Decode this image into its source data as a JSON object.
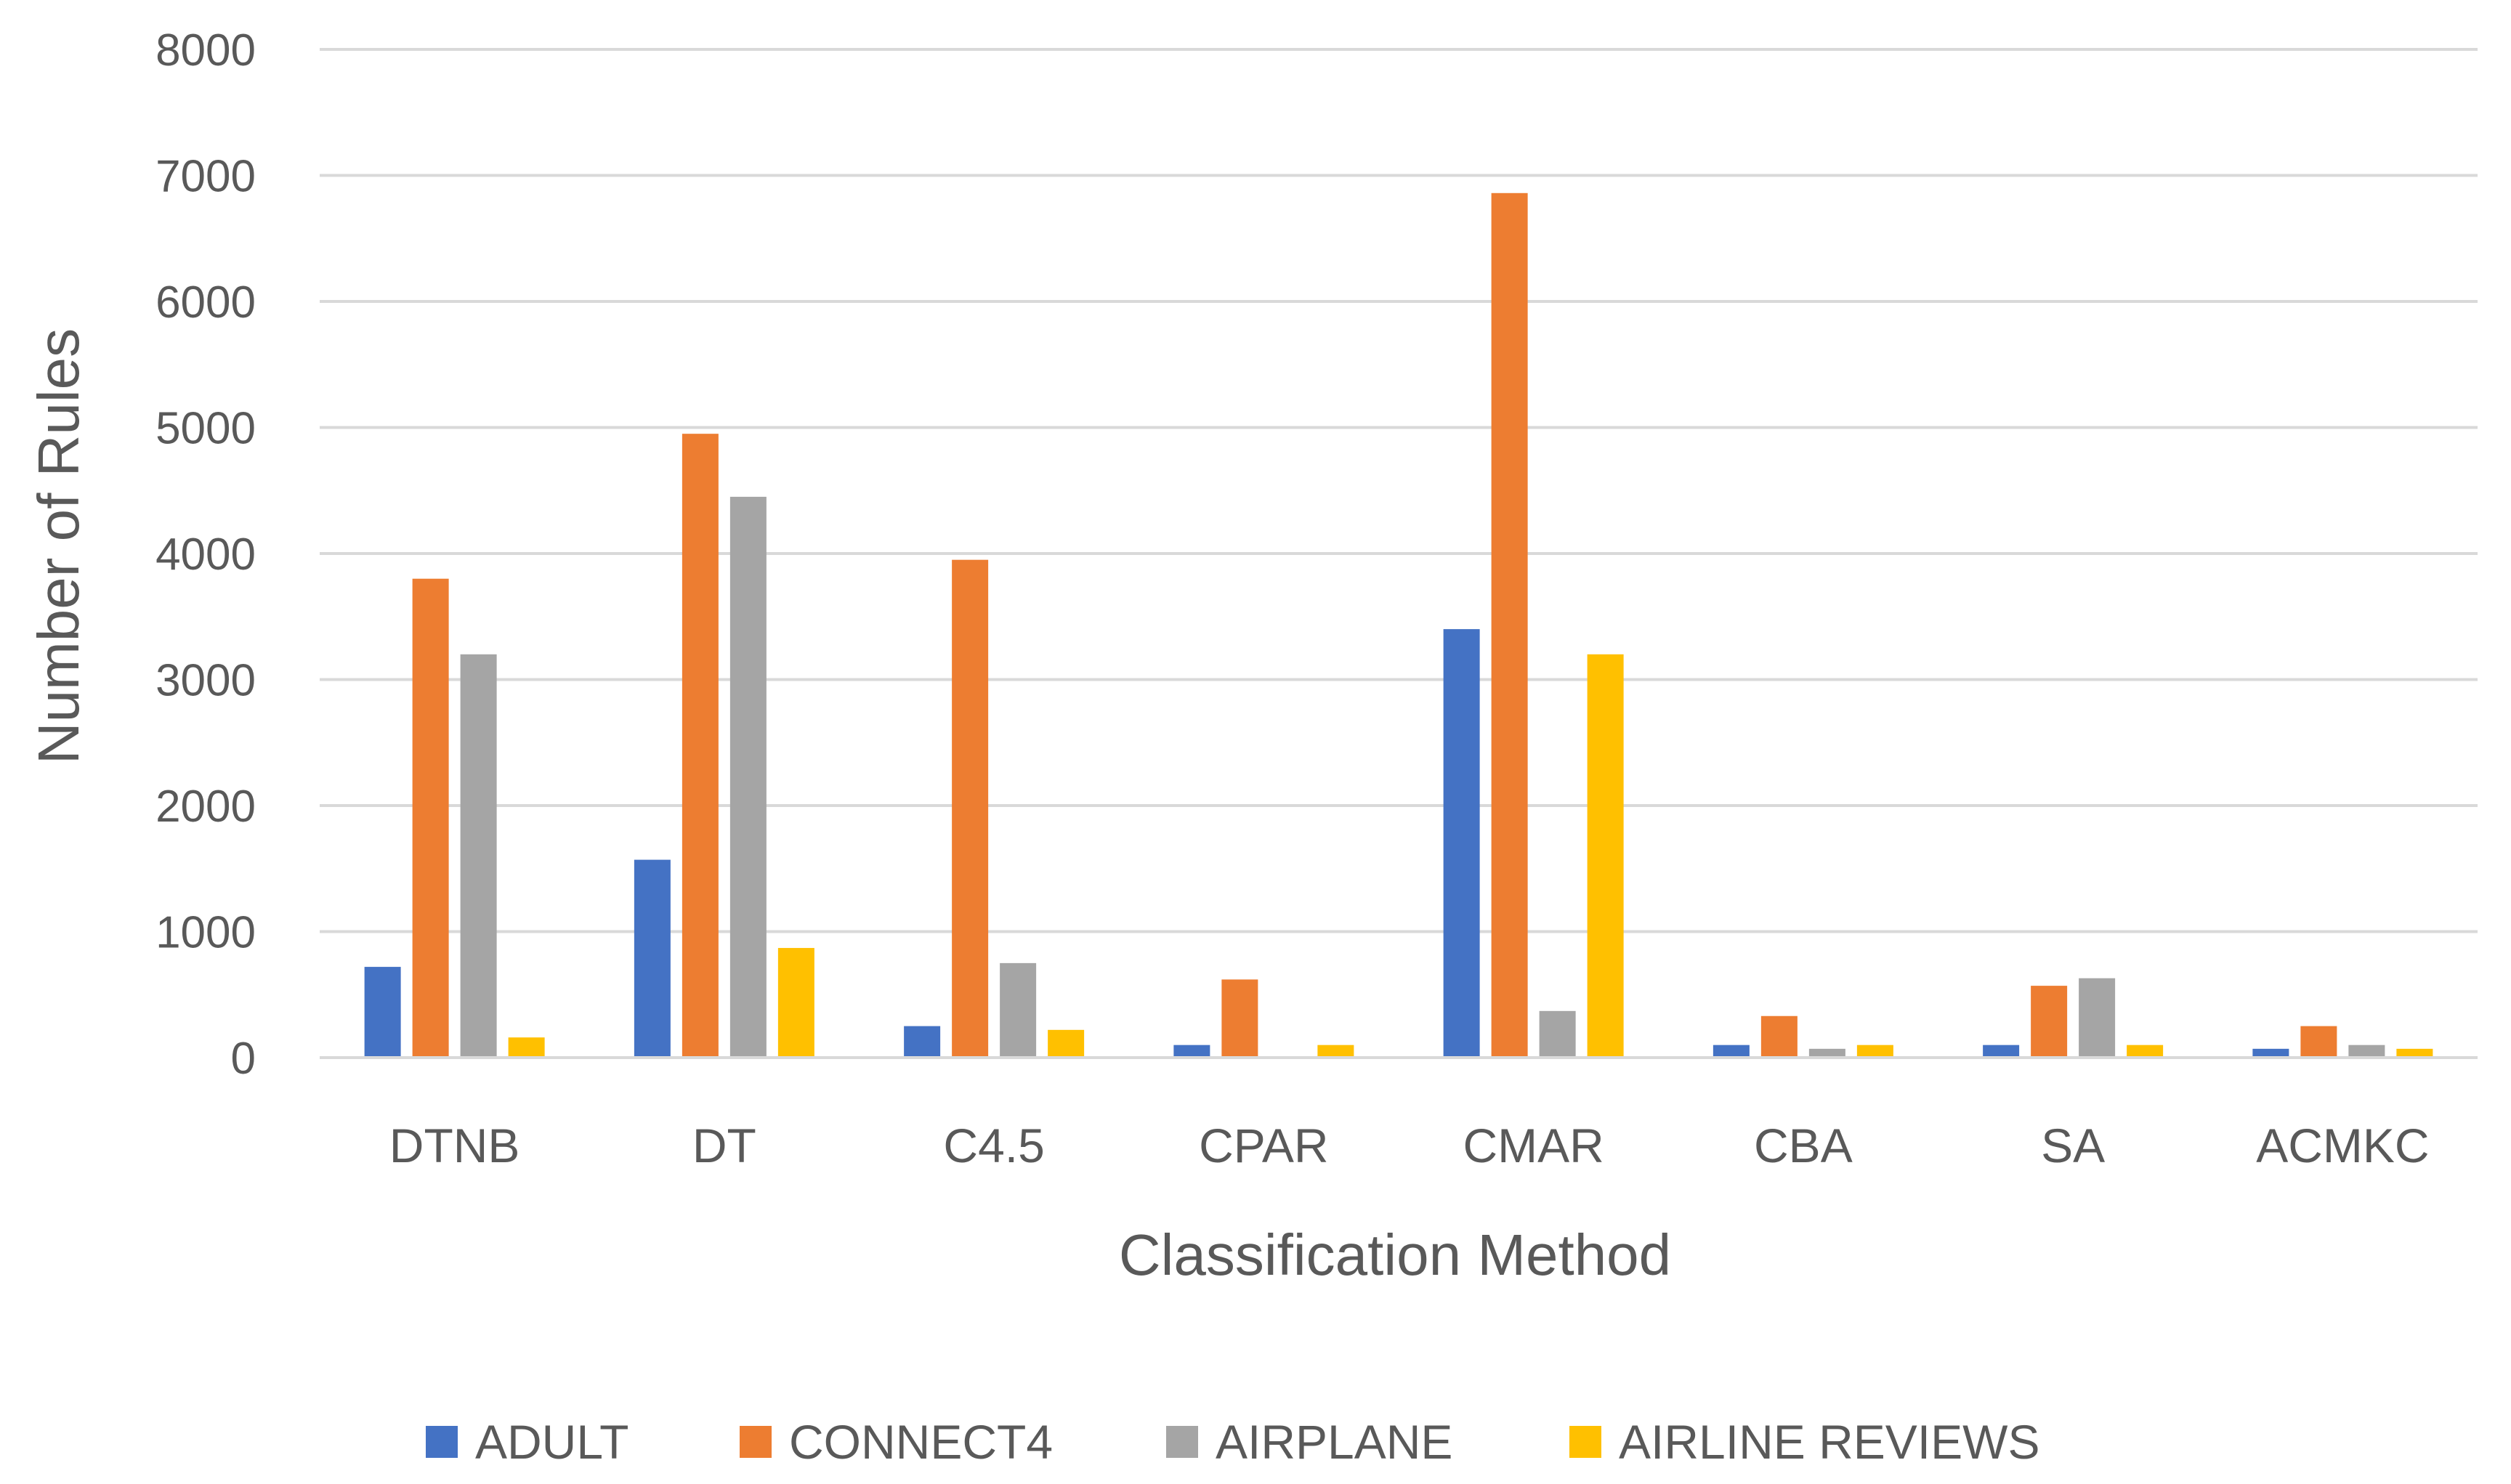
{
  "chart_data": {
    "type": "bar",
    "title": "",
    "xlabel": "Classification Method",
    "ylabel": "Number of Rules",
    "ylim": [
      0,
      8000
    ],
    "yticks": [
      0,
      1000,
      2000,
      3000,
      4000,
      5000,
      6000,
      7000,
      8000
    ],
    "grid": true,
    "legend_position": "bottom",
    "categories": [
      "DTNB",
      "DT",
      "C4.5",
      "CPAR",
      "CMAR",
      "CBA",
      "SA",
      "ACMKC"
    ],
    "series": [
      {
        "name": "ADULT",
        "color": "#4472C4",
        "values": [
          720,
          1570,
          250,
          100,
          3400,
          100,
          100,
          70
        ]
      },
      {
        "name": "CONNECT4",
        "color": "#ED7D31",
        "values": [
          3800,
          4950,
          3950,
          620,
          6860,
          330,
          570,
          250
        ]
      },
      {
        "name": "AIRPLANE",
        "color": "#A5A5A5",
        "values": [
          3200,
          4450,
          750,
          0,
          370,
          70,
          630,
          100
        ]
      },
      {
        "name": "AIRLINE REVIEWS",
        "color": "#FFC000",
        "values": [
          160,
          870,
          220,
          100,
          3200,
          100,
          100,
          70
        ]
      }
    ]
  }
}
